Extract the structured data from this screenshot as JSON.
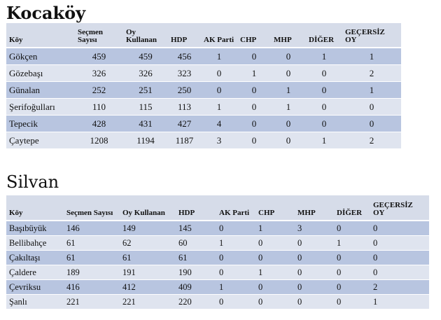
{
  "sections": [
    {
      "title": "Kocaköy",
      "headers": [
        "Köy",
        "Seçmen Sayısı",
        "Oy Kullanan",
        "HDP",
        "AK Parti",
        "CHP",
        "MHP",
        "DİĞER",
        "GEÇERSİZ OY"
      ],
      "rows": [
        [
          "Gökçen",
          "459",
          "459",
          "456",
          "1",
          "0",
          "0",
          "1",
          "1"
        ],
        [
          "Gözebaşı",
          "326",
          "326",
          "323",
          "0",
          "1",
          "0",
          "0",
          "2"
        ],
        [
          "Günalan",
          "252",
          "251",
          "250",
          "0",
          "0",
          "1",
          "0",
          "1"
        ],
        [
          "Şerifoğulları",
          "110",
          "115",
          "113",
          "1",
          "0",
          "1",
          "0",
          "0"
        ],
        [
          "Tepecik",
          "428",
          "431",
          "427",
          "4",
          "0",
          "0",
          "0",
          "0"
        ],
        [
          "Çaytepe",
          "1208",
          "1194",
          "1187",
          "3",
          "0",
          "0",
          "1",
          "2"
        ]
      ]
    },
    {
      "title": "Silvan",
      "headers": [
        "Köy",
        "Seçmen Sayısı",
        "Oy Kullanan",
        "HDP",
        "AK Parti",
        "CHP",
        "MHP",
        "DİĞER",
        "GEÇERSİZ OY"
      ],
      "rows": [
        [
          "Başıbüyük",
          "146",
          "149",
          "145",
          "0",
          "1",
          "3",
          "0",
          "0"
        ],
        [
          "Bellibahçe",
          "61",
          "62",
          "60",
          "1",
          "0",
          "0",
          "1",
          "0"
        ],
        [
          "Çakıltaşı",
          "61",
          "61",
          "61",
          "0",
          "0",
          "0",
          "0",
          "0"
        ],
        [
          "Çaldere",
          "189",
          "191",
          "190",
          "0",
          "1",
          "0",
          "0",
          "0"
        ],
        [
          "Çevriksu",
          "416",
          "412",
          "409",
          "1",
          "0",
          "0",
          "0",
          "2"
        ],
        [
          "Şanlı",
          "221",
          "221",
          "220",
          "0",
          "0",
          "0",
          "0",
          "1"
        ]
      ]
    }
  ]
}
